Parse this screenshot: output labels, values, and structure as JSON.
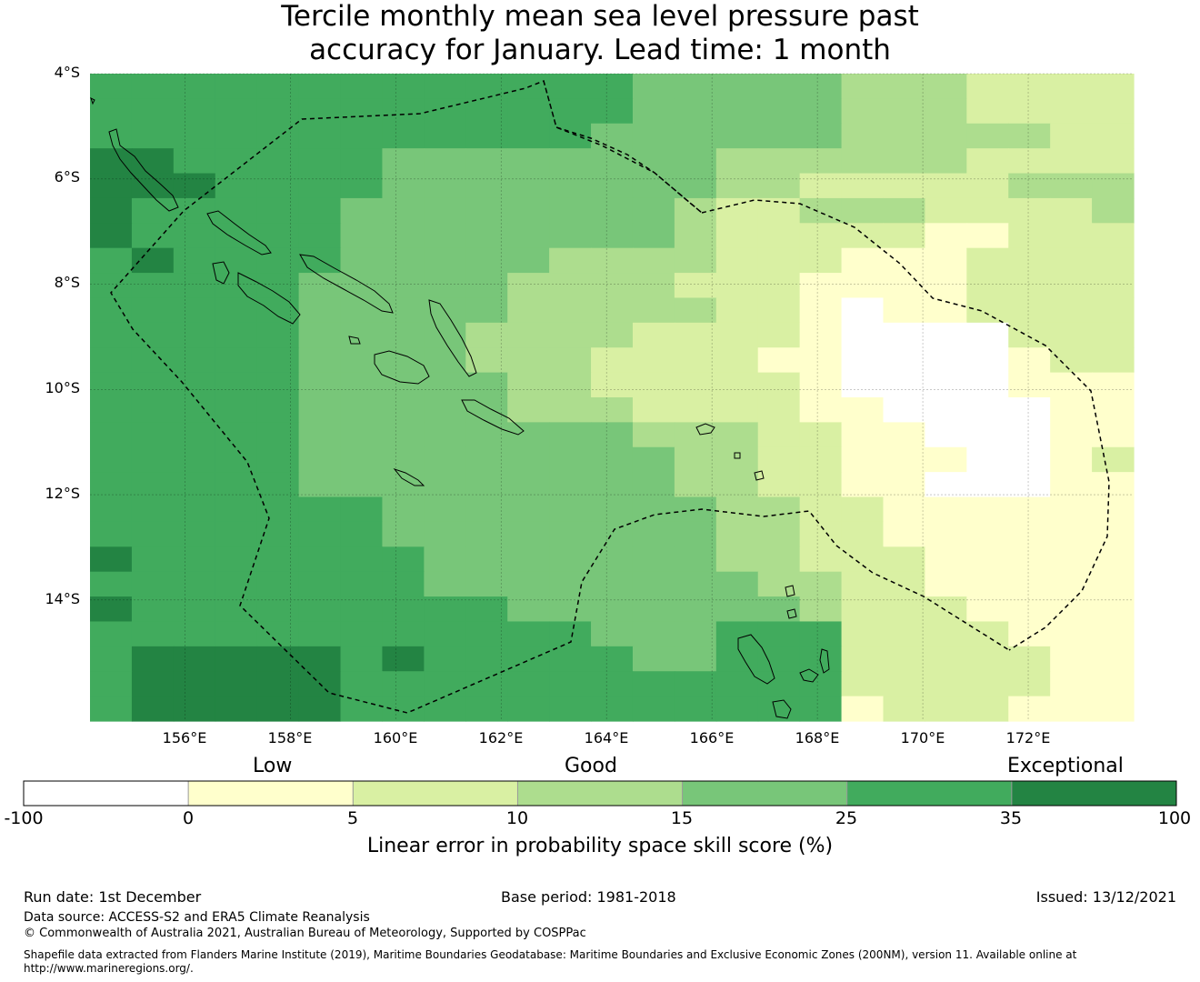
{
  "title_line1": "Tercile monthly mean sea level pressure past",
  "title_line2": "accuracy for January. Lead time: 1 month",
  "map": {
    "lon_range": [
      154.2,
      174.0
    ],
    "lat_range": [
      -16.3,
      -4.0
    ],
    "lat_ticks": [
      {
        "value": -4,
        "label": "4°S"
      },
      {
        "value": -6,
        "label": "6°S"
      },
      {
        "value": -8,
        "label": "8°S"
      },
      {
        "value": -10,
        "label": "10°S"
      },
      {
        "value": -12,
        "label": "12°S"
      },
      {
        "value": -14,
        "label": "14°S"
      }
    ],
    "lon_ticks": [
      {
        "value": 156,
        "label": "156°E"
      },
      {
        "value": 158,
        "label": "158°E"
      },
      {
        "value": 160,
        "label": "160°E"
      },
      {
        "value": 162,
        "label": "162°E"
      },
      {
        "value": 164,
        "label": "164°E"
      },
      {
        "value": 166,
        "label": "166°E"
      },
      {
        "value": 168,
        "label": "168°E"
      },
      {
        "value": 170,
        "label": "170°E"
      },
      {
        "value": 172,
        "label": "172°E"
      }
    ],
    "grid": true,
    "eez_boundary": "dashed",
    "skill_category_rows_north_to_south": [
      "5555555555555444443332222",
      "5555555555555444443332222",
      "5555555555554444443333322",
      "6655555444444443333332222",
      "6665555444444443322222333",
      "6555554444444432233322223",
      "6555554444444432222211222",
      "5655554444433332221112222",
      "5555544444333322211112222",
      "5555544444333332210112222",
      "5555544443333222210000222",
      "5555544443332222110000122",
      "5555544444332222210000111",
      "5555544444333222211000011",
      "5555544444444333221100011",
      "5555544444444433221110012",
      "5555544444444433221100011",
      "5555555444444443322111111",
      "5555555444444443322111111",
      "6555555544444443322211111",
      "5555555544444444332211111",
      "6555555555444444432221111",
      "5555555555554445552222111",
      "5666665655555445552222211",
      "5666665555555555552222211",
      "5666665555555555551222111"
    ]
  },
  "colorbar": {
    "category_labels": [
      "Low",
      "Good",
      "Exceptional"
    ],
    "boundaries": [
      "-100",
      "0",
      "5",
      "10",
      "15",
      "25",
      "35",
      "100"
    ],
    "colors": [
      "#ffffff",
      "#ffffcc",
      "#d9f0a3",
      "#addd8e",
      "#78c679",
      "#41ab5d",
      "#238443"
    ],
    "title": "Linear error in probability space skill score (%)"
  },
  "footer": {
    "run_date": "Run date: 1st December",
    "base_period": "Base period: 1981-2018",
    "issued": "Issued: 13/12/2021",
    "data_source": "Data source: ACCESS-S2 and ERA5 Climate Reanalysis",
    "copyright": "© Commonwealth of Australia 2021, Australian Bureau of Meteorology, Supported by COSPPac",
    "shapefile_line1": "Shapefile data extracted from Flanders Marine Institute (2019), Maritime Boundaries Geodatabase: Maritime Boundaries and Exclusive Economic Zones (200NM), version 11. Available online at",
    "shapefile_line2": "http://www.marineregions.org/."
  }
}
